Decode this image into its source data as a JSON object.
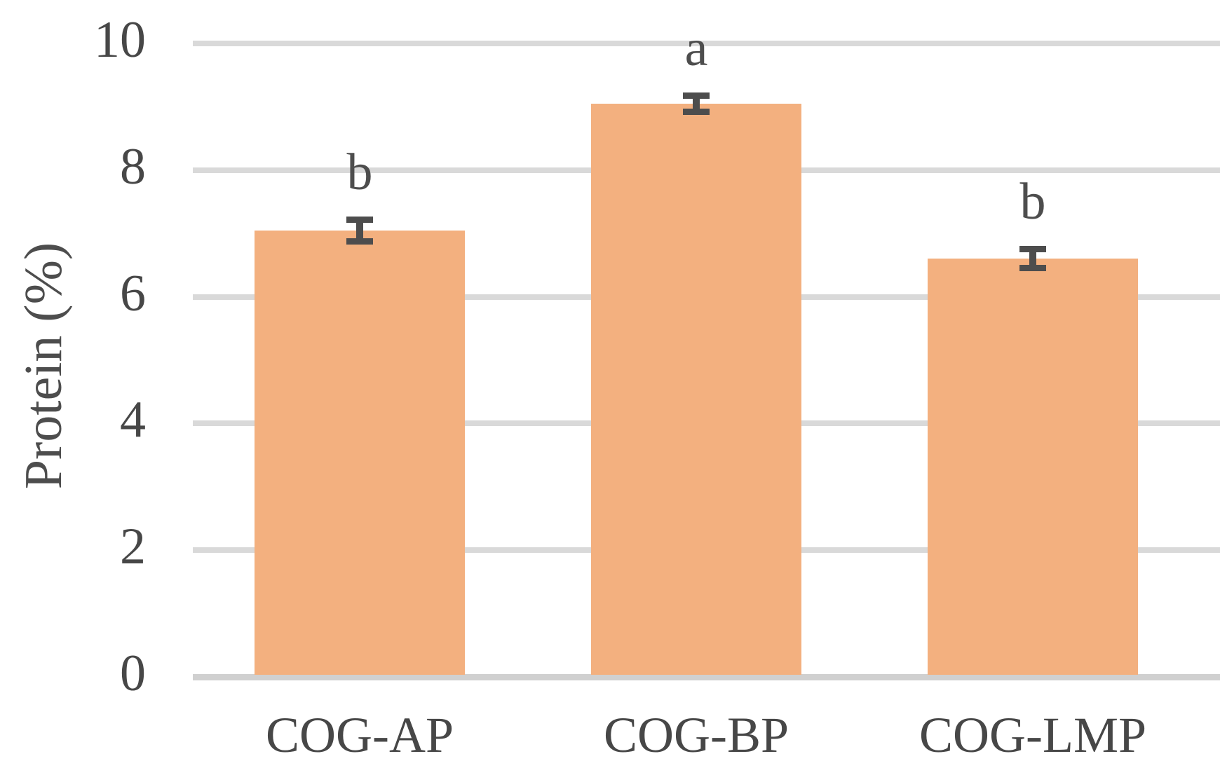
{
  "chart_data": {
    "type": "bar",
    "categories": [
      "COG-AP",
      "COG-BP",
      "COG-LMP"
    ],
    "values": [
      7.05,
      9.05,
      6.6
    ],
    "error_bars": [
      0.17,
      0.13,
      0.15
    ],
    "sig_letters": [
      "b",
      "a",
      "b"
    ],
    "title": "",
    "xlabel": "",
    "ylabel": "Protein (%)",
    "ylim": [
      0,
      10
    ],
    "yticks": [
      0,
      2,
      4,
      6,
      8,
      10
    ],
    "grid": true,
    "legend": "none",
    "colors": {
      "bar": "#F3B07F",
      "error_bar": "#4D4D4D",
      "sig_letter": "#4D4D4D",
      "tick_text": "#474747",
      "category_text": "#474747",
      "axis_title_text": "#4D4D4D",
      "gridline": "#D9D9D9",
      "axis_line": "#D0D0D0"
    }
  }
}
